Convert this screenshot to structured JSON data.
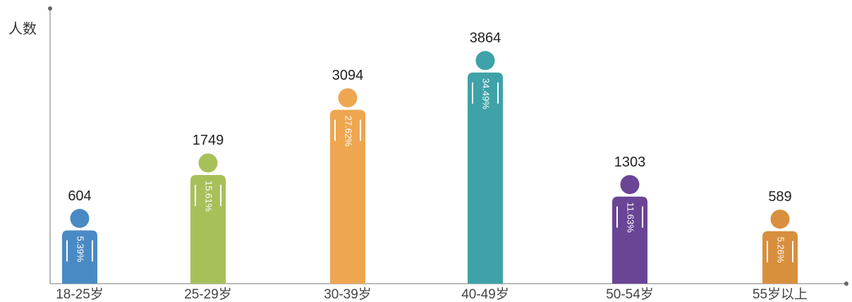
{
  "chart_data": {
    "type": "pictograph",
    "y_label": "人数",
    "categories": [
      "18-25岁",
      "25-29岁",
      "30-39岁",
      "40-49岁",
      "50-54岁",
      "55岁以上"
    ],
    "values": [
      604,
      1749,
      3094,
      3864,
      1303,
      589
    ],
    "shares": [
      5.39,
      15.61,
      27.62,
      34.49,
      11.63,
      5.26
    ],
    "share_labels": [
      "5.39%",
      "15.61%",
      "27.62%",
      "34.49%",
      "11.63%",
      "5.26%"
    ],
    "colors": [
      "#4a8ac4",
      "#a8c05a",
      "#eea650",
      "#3ea2a8",
      "#6a4595",
      "#d88f3e"
    ],
    "ylim": [
      0,
      4750
    ]
  }
}
